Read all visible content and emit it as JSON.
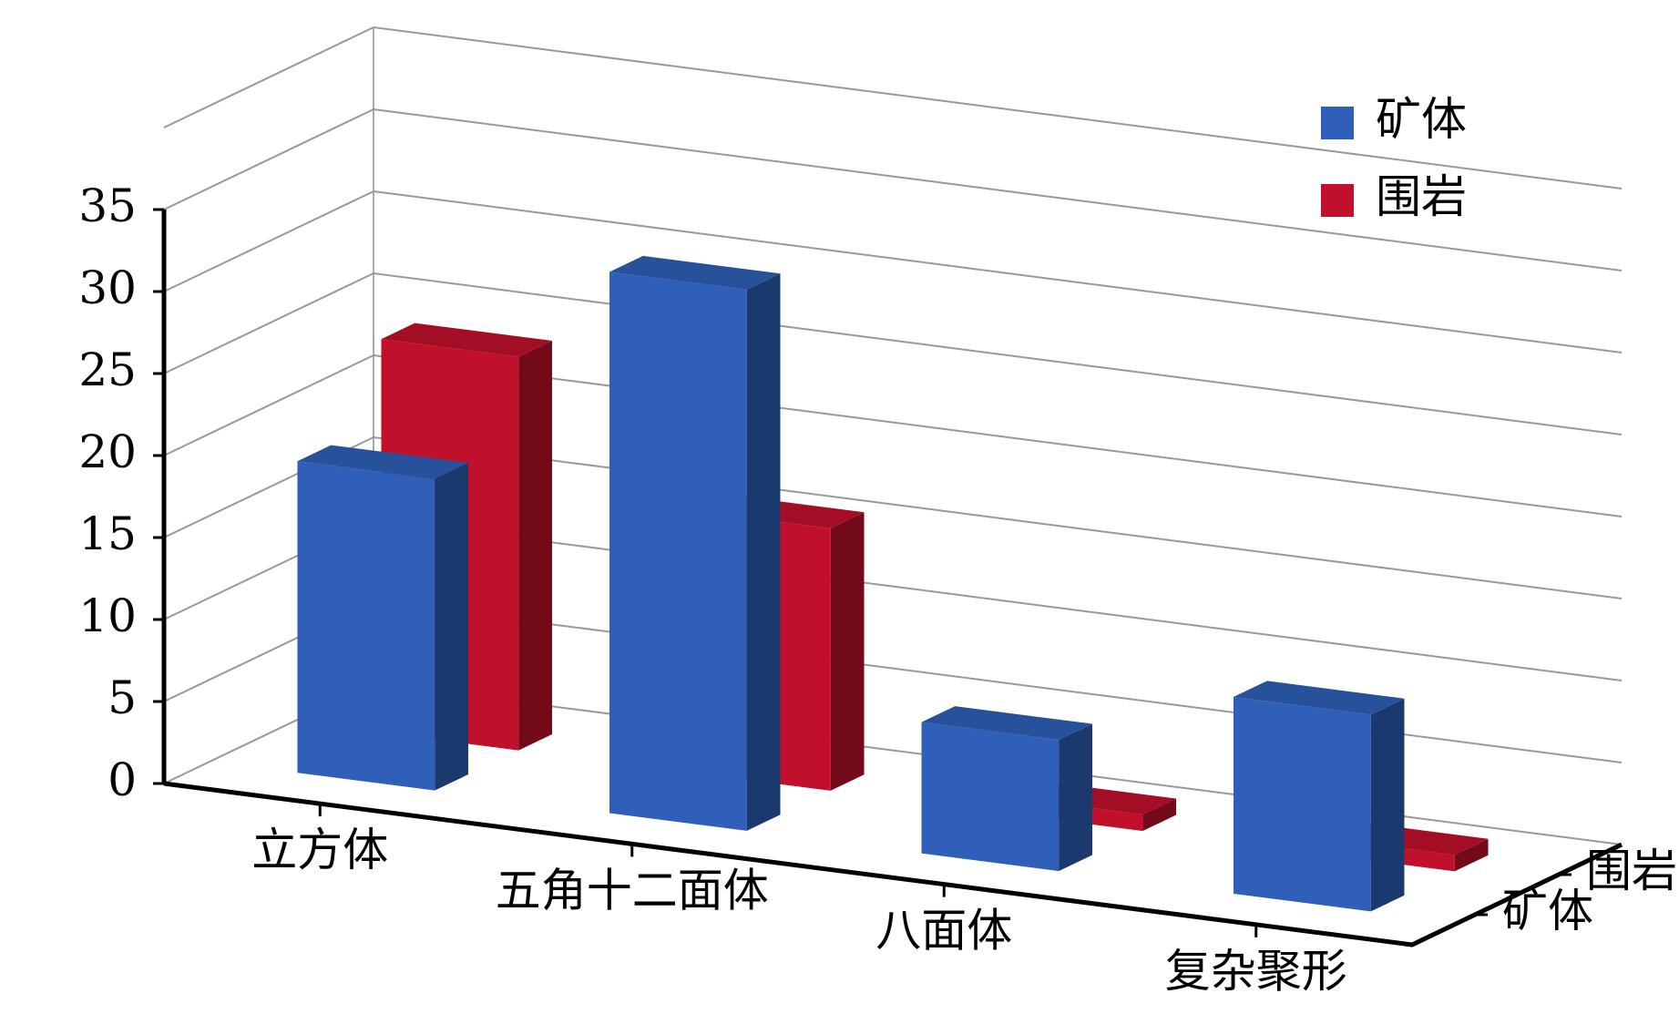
{
  "chart_data": {
    "type": "bar3d",
    "categories": [
      "立方体",
      "五角十二面体",
      "八面体",
      "复杂聚形"
    ],
    "series": [
      {
        "name": "矿体",
        "color": "#2f5fb8",
        "values": [
          19,
          33,
          8,
          12
        ]
      },
      {
        "name": "围岩",
        "color": "#c0102c",
        "values": [
          24,
          16,
          1,
          1
        ]
      }
    ],
    "ylim": [
      0,
      40
    ],
    "yticks": [
      0,
      5,
      10,
      15,
      20,
      25,
      30,
      35
    ],
    "grid": true,
    "legend": "top-right"
  }
}
